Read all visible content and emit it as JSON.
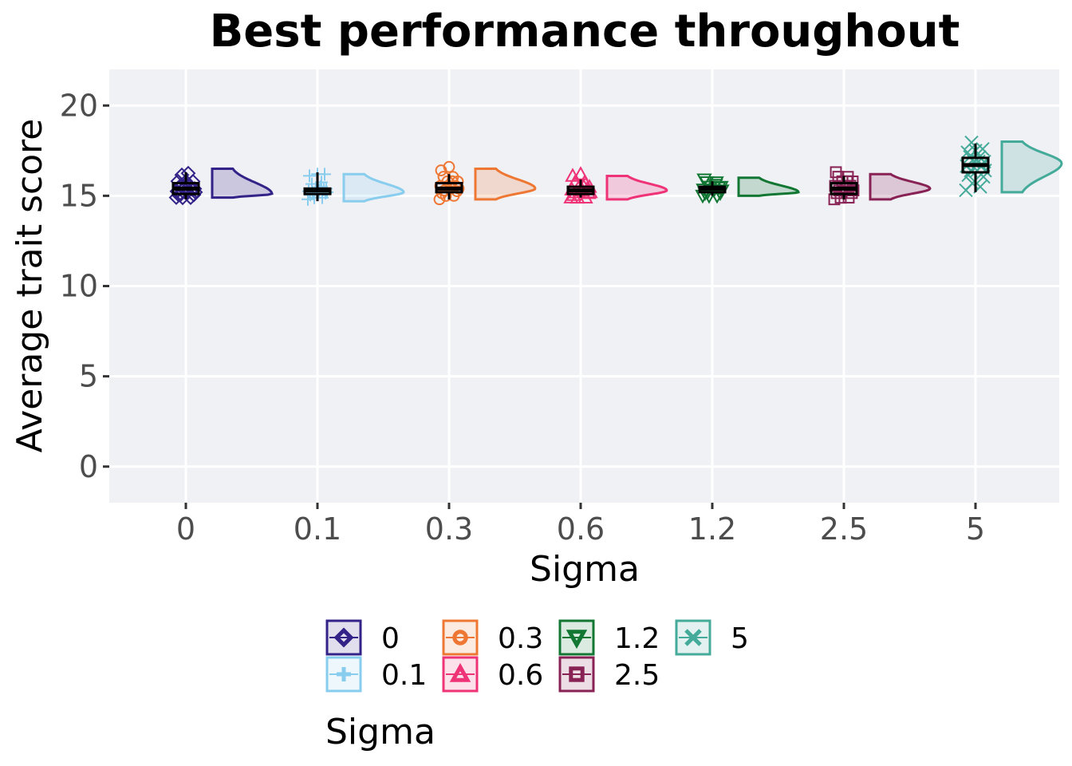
{
  "chart_data": {
    "type": "raincloud",
    "title": "Best performance throughout",
    "xlabel": "Sigma",
    "ylabel": "Average trait score",
    "categories": [
      "0",
      "0.1",
      "0.3",
      "0.6",
      "1.2",
      "2.5",
      "5"
    ],
    "ylim": [
      -2,
      22
    ],
    "yticks": [
      0,
      5,
      10,
      15,
      20
    ],
    "grid": true,
    "panel_background": "#f0f1f5",
    "legend": {
      "title": "Sigma",
      "position": "bottom",
      "entries": [
        {
          "label": "0",
          "color": "#332288",
          "shape": "diamond"
        },
        {
          "label": "0.1",
          "color": "#88ccee",
          "shape": "plus"
        },
        {
          "label": "0.3",
          "color": "#ee7733",
          "shape": "circle"
        },
        {
          "label": "0.6",
          "color": "#ee3377",
          "shape": "triangle-up"
        },
        {
          "label": "1.2",
          "color": "#117733",
          "shape": "triangle-down"
        },
        {
          "label": "2.5",
          "color": "#882255",
          "shape": "square"
        },
        {
          "label": "5",
          "color": "#44aa99",
          "shape": "cross"
        }
      ]
    },
    "series": [
      {
        "name": "0",
        "color": "#332288",
        "shape": "diamond",
        "box": {
          "min": 14.8,
          "q1": 15.1,
          "median": 15.4,
          "q3": 15.7,
          "max": 16.3
        },
        "density_range": [
          14.9,
          16.5
        ],
        "density_mode": 15.1,
        "points": [
          14.8,
          14.9,
          15.0,
          15.0,
          15.1,
          15.1,
          15.2,
          15.2,
          15.3,
          15.3,
          15.4,
          15.4,
          15.5,
          15.5,
          15.6,
          15.7,
          15.8,
          15.9,
          16.1,
          16.3
        ]
      },
      {
        "name": "0.1",
        "color": "#88ccee",
        "shape": "plus",
        "box": {
          "min": 14.7,
          "q1": 15.1,
          "median": 15.3,
          "q3": 15.4,
          "max": 16.3
        },
        "density_range": [
          14.7,
          16.2
        ],
        "density_mode": 15.2,
        "points": [
          14.7,
          14.9,
          15.0,
          15.1,
          15.1,
          15.2,
          15.2,
          15.3,
          15.3,
          15.3,
          15.4,
          15.4,
          15.5,
          15.6,
          15.8,
          16.0,
          16.2,
          16.3
        ]
      },
      {
        "name": "0.3",
        "color": "#ee7733",
        "shape": "circle",
        "box": {
          "min": 14.8,
          "q1": 15.2,
          "median": 15.4,
          "q3": 15.7,
          "max": 16.2
        },
        "density_range": [
          14.8,
          16.5
        ],
        "density_mode": 15.4,
        "points": [
          14.7,
          15.0,
          15.1,
          15.2,
          15.2,
          15.3,
          15.4,
          15.4,
          15.5,
          15.6,
          15.7,
          15.8,
          15.9,
          16.0,
          16.1,
          16.3,
          16.6
        ]
      },
      {
        "name": "0.6",
        "color": "#ee3377",
        "shape": "triangle-up",
        "box": {
          "min": 14.9,
          "q1": 15.1,
          "median": 15.3,
          "q3": 15.5,
          "max": 15.9
        },
        "density_range": [
          14.8,
          16.1
        ],
        "density_mode": 15.3,
        "points": [
          14.8,
          14.9,
          15.0,
          15.1,
          15.1,
          15.2,
          15.2,
          15.3,
          15.3,
          15.4,
          15.4,
          15.5,
          15.6,
          15.7,
          15.8,
          16.0,
          16.2
        ]
      },
      {
        "name": "1.2",
        "color": "#117733",
        "shape": "triangle-down",
        "box": {
          "min": 15.0,
          "q1": 15.2,
          "median": 15.4,
          "q3": 15.5,
          "max": 15.8
        },
        "density_range": [
          15.0,
          16.0
        ],
        "density_mode": 15.2,
        "points": [
          14.9,
          15.0,
          15.1,
          15.1,
          15.2,
          15.2,
          15.3,
          15.3,
          15.4,
          15.4,
          15.5,
          15.5,
          15.6,
          15.7,
          15.8,
          15.8
        ]
      },
      {
        "name": "2.5",
        "color": "#882255",
        "shape": "square",
        "box": {
          "min": 14.8,
          "q1": 15.1,
          "median": 15.4,
          "q3": 15.7,
          "max": 16.1
        },
        "density_range": [
          14.8,
          16.2
        ],
        "density_mode": 15.4,
        "points": [
          14.7,
          14.9,
          15.0,
          15.1,
          15.2,
          15.3,
          15.3,
          15.4,
          15.5,
          15.6,
          15.7,
          15.8,
          15.9,
          16.0,
          16.1,
          16.2
        ]
      },
      {
        "name": "5",
        "color": "#44aa99",
        "shape": "cross",
        "box": {
          "min": 15.2,
          "q1": 16.3,
          "median": 16.7,
          "q3": 17.1,
          "max": 17.9
        },
        "density_range": [
          15.2,
          18.0
        ],
        "density_mode": 16.8,
        "points": [
          15.2,
          15.5,
          15.8,
          16.0,
          16.2,
          16.3,
          16.4,
          16.5,
          16.6,
          16.7,
          16.8,
          16.9,
          17.0,
          17.1,
          17.2,
          17.3,
          17.5,
          17.7,
          17.9
        ]
      }
    ]
  }
}
